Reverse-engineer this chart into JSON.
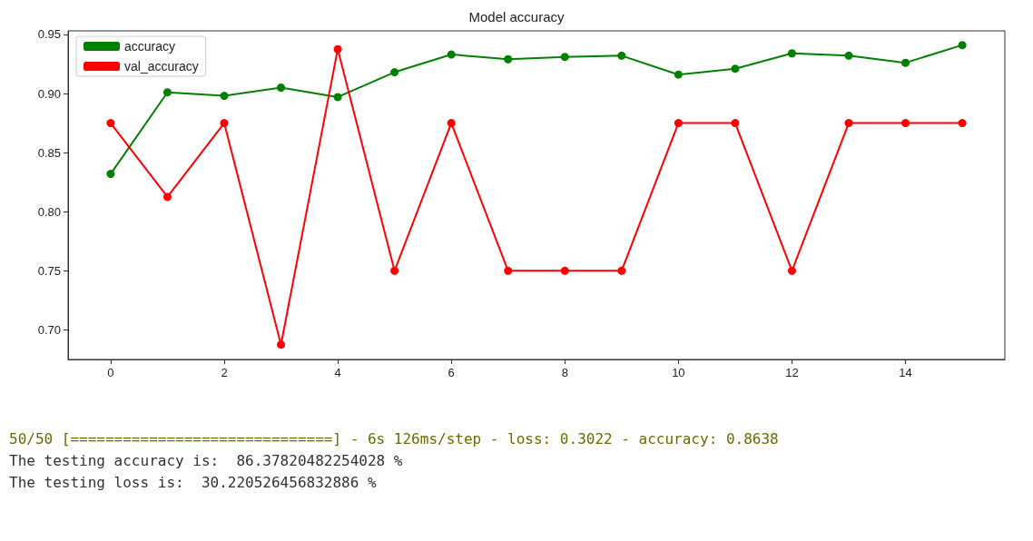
{
  "chart_data": {
    "type": "line",
    "title": "Model accuracy",
    "x": [
      0,
      1,
      2,
      3,
      4,
      5,
      6,
      7,
      8,
      9,
      10,
      11,
      12,
      13,
      14,
      15
    ],
    "series": [
      {
        "name": "accuracy",
        "color": "#008000",
        "values": [
          0.832,
          0.901,
          0.898,
          0.905,
          0.897,
          0.918,
          0.933,
          0.929,
          0.931,
          0.932,
          0.916,
          0.921,
          0.934,
          0.932,
          0.926,
          0.941
        ]
      },
      {
        "name": "val_accuracy",
        "color": "#ff0000",
        "values": [
          0.875,
          0.8125,
          0.875,
          0.6875,
          0.9375,
          0.75,
          0.875,
          0.75,
          0.75,
          0.75,
          0.875,
          0.875,
          0.75,
          0.875,
          0.875,
          0.875
        ]
      }
    ],
    "xlim": [
      -0.75,
      15.75
    ],
    "xticks": [
      0,
      2,
      4,
      6,
      8,
      10,
      12,
      14
    ],
    "ylim": [
      0.675,
      0.953
    ],
    "yticks": [
      {
        "value": 0.7,
        "label": "0.70"
      },
      {
        "value": 0.75,
        "label": "0.75"
      },
      {
        "value": 0.8,
        "label": "0.80"
      },
      {
        "value": 0.85,
        "label": "0.85"
      },
      {
        "value": 0.9,
        "label": "0.90"
      },
      {
        "value": 0.95,
        "label": "0.95"
      }
    ],
    "grid": false,
    "legend": "top left",
    "marker": "circle",
    "line_style": "solid",
    "annotations": [
      "50/50 [==============================] - 6s 126ms/step - loss: 0.3022 - accuracy: 0.8638",
      "The testing accuracy is:  86.37820482254028 %",
      "The testing loss is:  30.220526456832886 %"
    ]
  }
}
